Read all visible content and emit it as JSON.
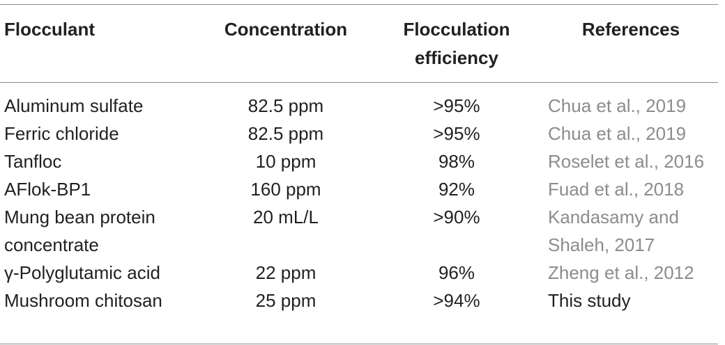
{
  "table": {
    "headers": [
      "Flocculant",
      "Concentration",
      "Flocculation efficiency",
      "References"
    ],
    "rows": [
      {
        "flocculant": "Aluminum sulfate",
        "concentration": "82.5 ppm",
        "efficiency": ">95%",
        "reference": "Chua et al., 2019"
      },
      {
        "flocculant": "Ferric chloride",
        "concentration": "82.5 ppm",
        "efficiency": ">95%",
        "reference": "Chua et al., 2019"
      },
      {
        "flocculant": "Tanfloc",
        "concentration": "10 ppm",
        "efficiency": "98%",
        "reference": "Roselet et al., 2016"
      },
      {
        "flocculant": "AFlok-BP1",
        "concentration": "160 ppm",
        "efficiency": "92%",
        "reference": "Fuad et al., 2018"
      },
      {
        "flocculant": "Mung bean protein concentrate",
        "concentration": "20 mL/L",
        "efficiency": ">90%",
        "reference": "Kandasamy and Shaleh, 2017"
      },
      {
        "flocculant": "γ-Polyglutamic acid",
        "concentration": "22 ppm",
        "efficiency": "96%",
        "reference": "Zheng et al., 2012"
      },
      {
        "flocculant": "Mushroom chitosan",
        "concentration": "25 ppm",
        "efficiency": ">94%",
        "reference": "This study"
      }
    ]
  },
  "colors": {
    "text": "#231f20",
    "reference_text": "#8c8c8c",
    "rule": "#8a8a8a"
  }
}
